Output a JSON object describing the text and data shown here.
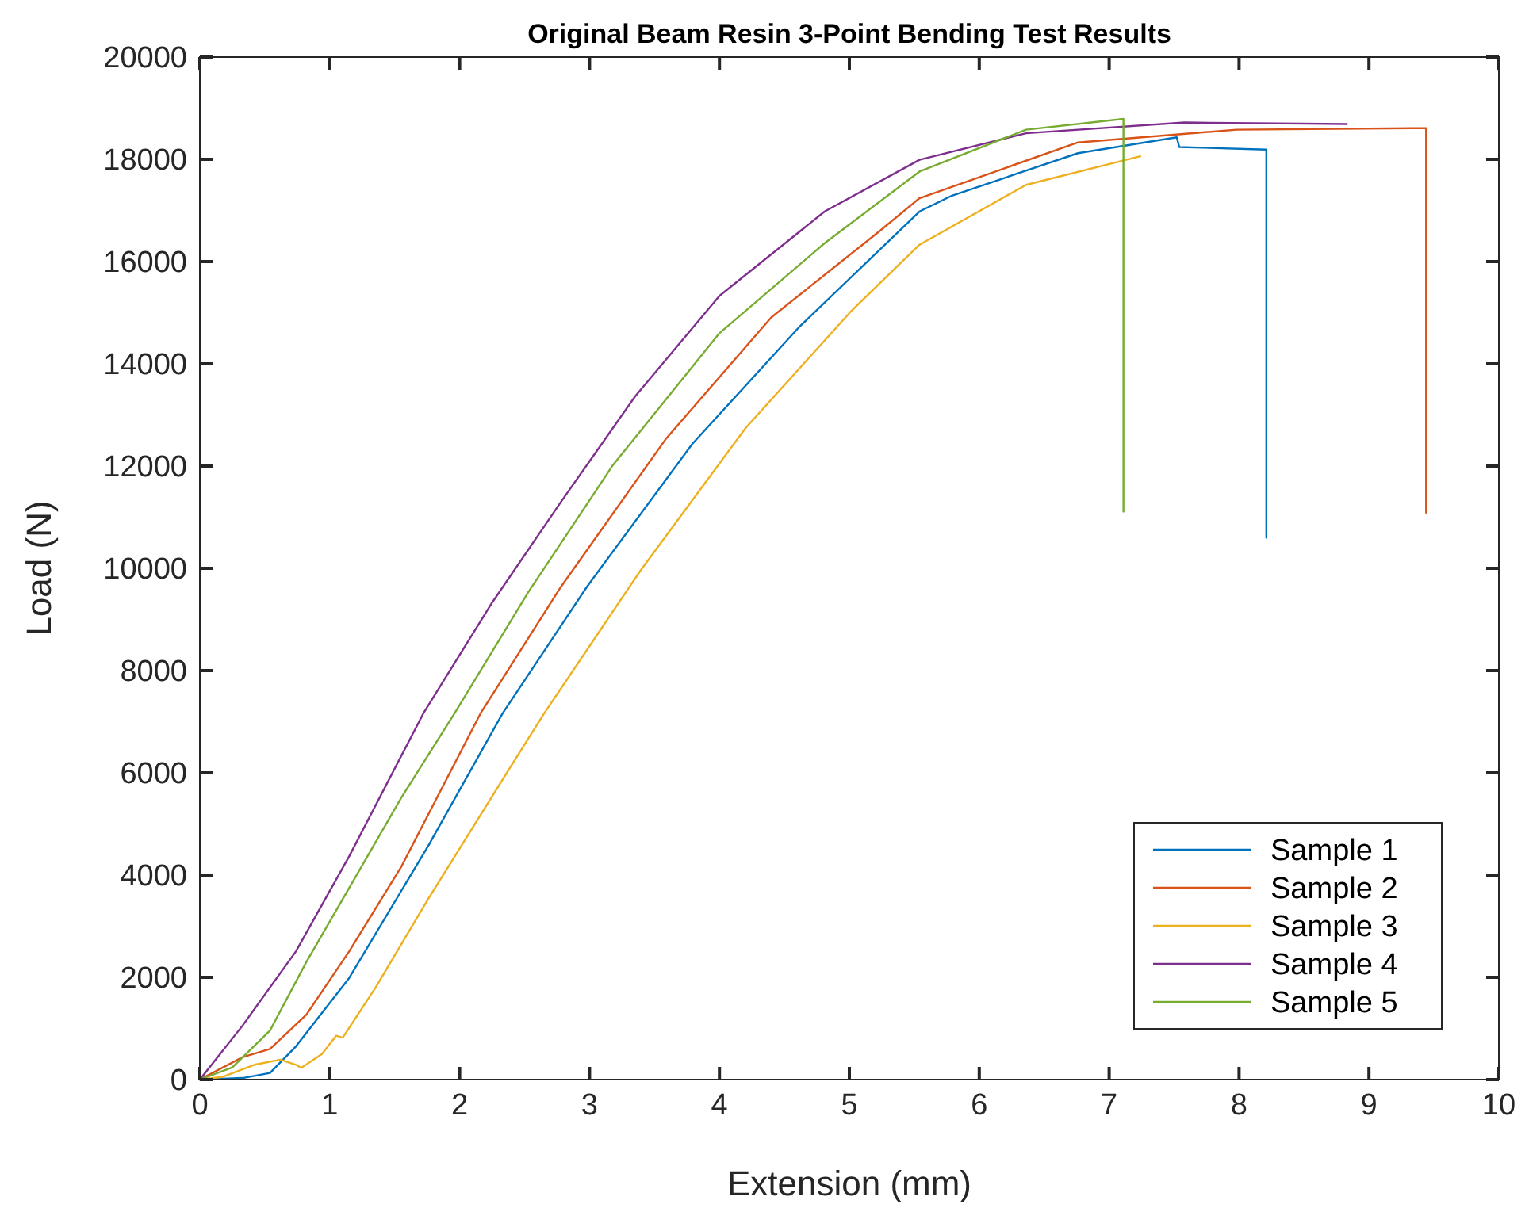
{
  "chart_data": {
    "type": "line",
    "title": "Original Beam Resin 3-Point Bending Test Results",
    "xlabel": "Extension (mm)",
    "ylabel": "Load (N)",
    "xlim": [
      0,
      10
    ],
    "ylim": [
      0,
      20000
    ],
    "xticks": [
      0,
      1,
      2,
      3,
      4,
      5,
      6,
      7,
      8,
      9,
      10
    ],
    "yticks": [
      0,
      2000,
      4000,
      6000,
      8000,
      10000,
      12000,
      14000,
      16000,
      18000,
      20000
    ],
    "grid": false,
    "legend": "bottom right",
    "marker": "none",
    "line_style": "solid",
    "series": [
      {
        "name": "Sample 1",
        "color": "#0072bd",
        "x": [
          0,
          0.33,
          0.54,
          0.74,
          1.15,
          1.76,
          2.33,
          2.98,
          3.79,
          4.61,
          5.54,
          5.79,
          6.76,
          7.52,
          7.54,
          8.21,
          8.21
        ],
        "values": [
          0,
          30,
          130,
          650,
          1990,
          4580,
          7160,
          9640,
          12430,
          14710,
          16980,
          17290,
          18120,
          18430,
          18240,
          18190,
          10600
        ]
      },
      {
        "name": "Sample 2",
        "color": "#d95319",
        "x": [
          0,
          0.33,
          0.54,
          0.82,
          1.15,
          1.55,
          2.16,
          2.78,
          3.59,
          4.4,
          5.22,
          5.54,
          6.76,
          7.98,
          9.44,
          9.44
        ],
        "values": [
          0,
          440,
          600,
          1270,
          2510,
          4160,
          7160,
          9640,
          12540,
          14910,
          16570,
          17240,
          18330,
          18580,
          18610,
          11090
        ]
      },
      {
        "name": "Sample 3",
        "color": "#edb120",
        "x": [
          0,
          0.17,
          0.42,
          0.62,
          0.74,
          0.78,
          0.94,
          1.05,
          1.1,
          1.35,
          1.76,
          2.37,
          2.65,
          3.39,
          4.2,
          5.01,
          5.54,
          6.36,
          7.24
        ],
        "values": [
          0,
          50,
          290,
          390,
          290,
          230,
          500,
          860,
          820,
          1790,
          3540,
          6030,
          7160,
          9950,
          12740,
          15020,
          16330,
          17500,
          18060
        ]
      },
      {
        "name": "Sample 4",
        "color": "#7e2f8e",
        "x": [
          0,
          0.33,
          0.74,
          1.15,
          1.72,
          2.25,
          2.78,
          3.35,
          4.0,
          4.81,
          5.54,
          6.36,
          7.58,
          8.83
        ],
        "values": [
          0,
          1060,
          2510,
          4370,
          7160,
          9330,
          11300,
          13360,
          15330,
          16980,
          17990,
          18510,
          18720,
          18690
        ]
      },
      {
        "name": "Sample 5",
        "color": "#77ac30",
        "x": [
          0,
          0.25,
          0.54,
          0.82,
          1.15,
          1.55,
          1.96,
          2.53,
          3.18,
          4.0,
          4.81,
          5.54,
          6.36,
          7.11,
          7.11
        ],
        "values": [
          0,
          240,
          960,
          2300,
          3750,
          5510,
          7160,
          9540,
          12020,
          14600,
          16360,
          17760,
          18580,
          18790,
          11110
        ]
      }
    ]
  }
}
